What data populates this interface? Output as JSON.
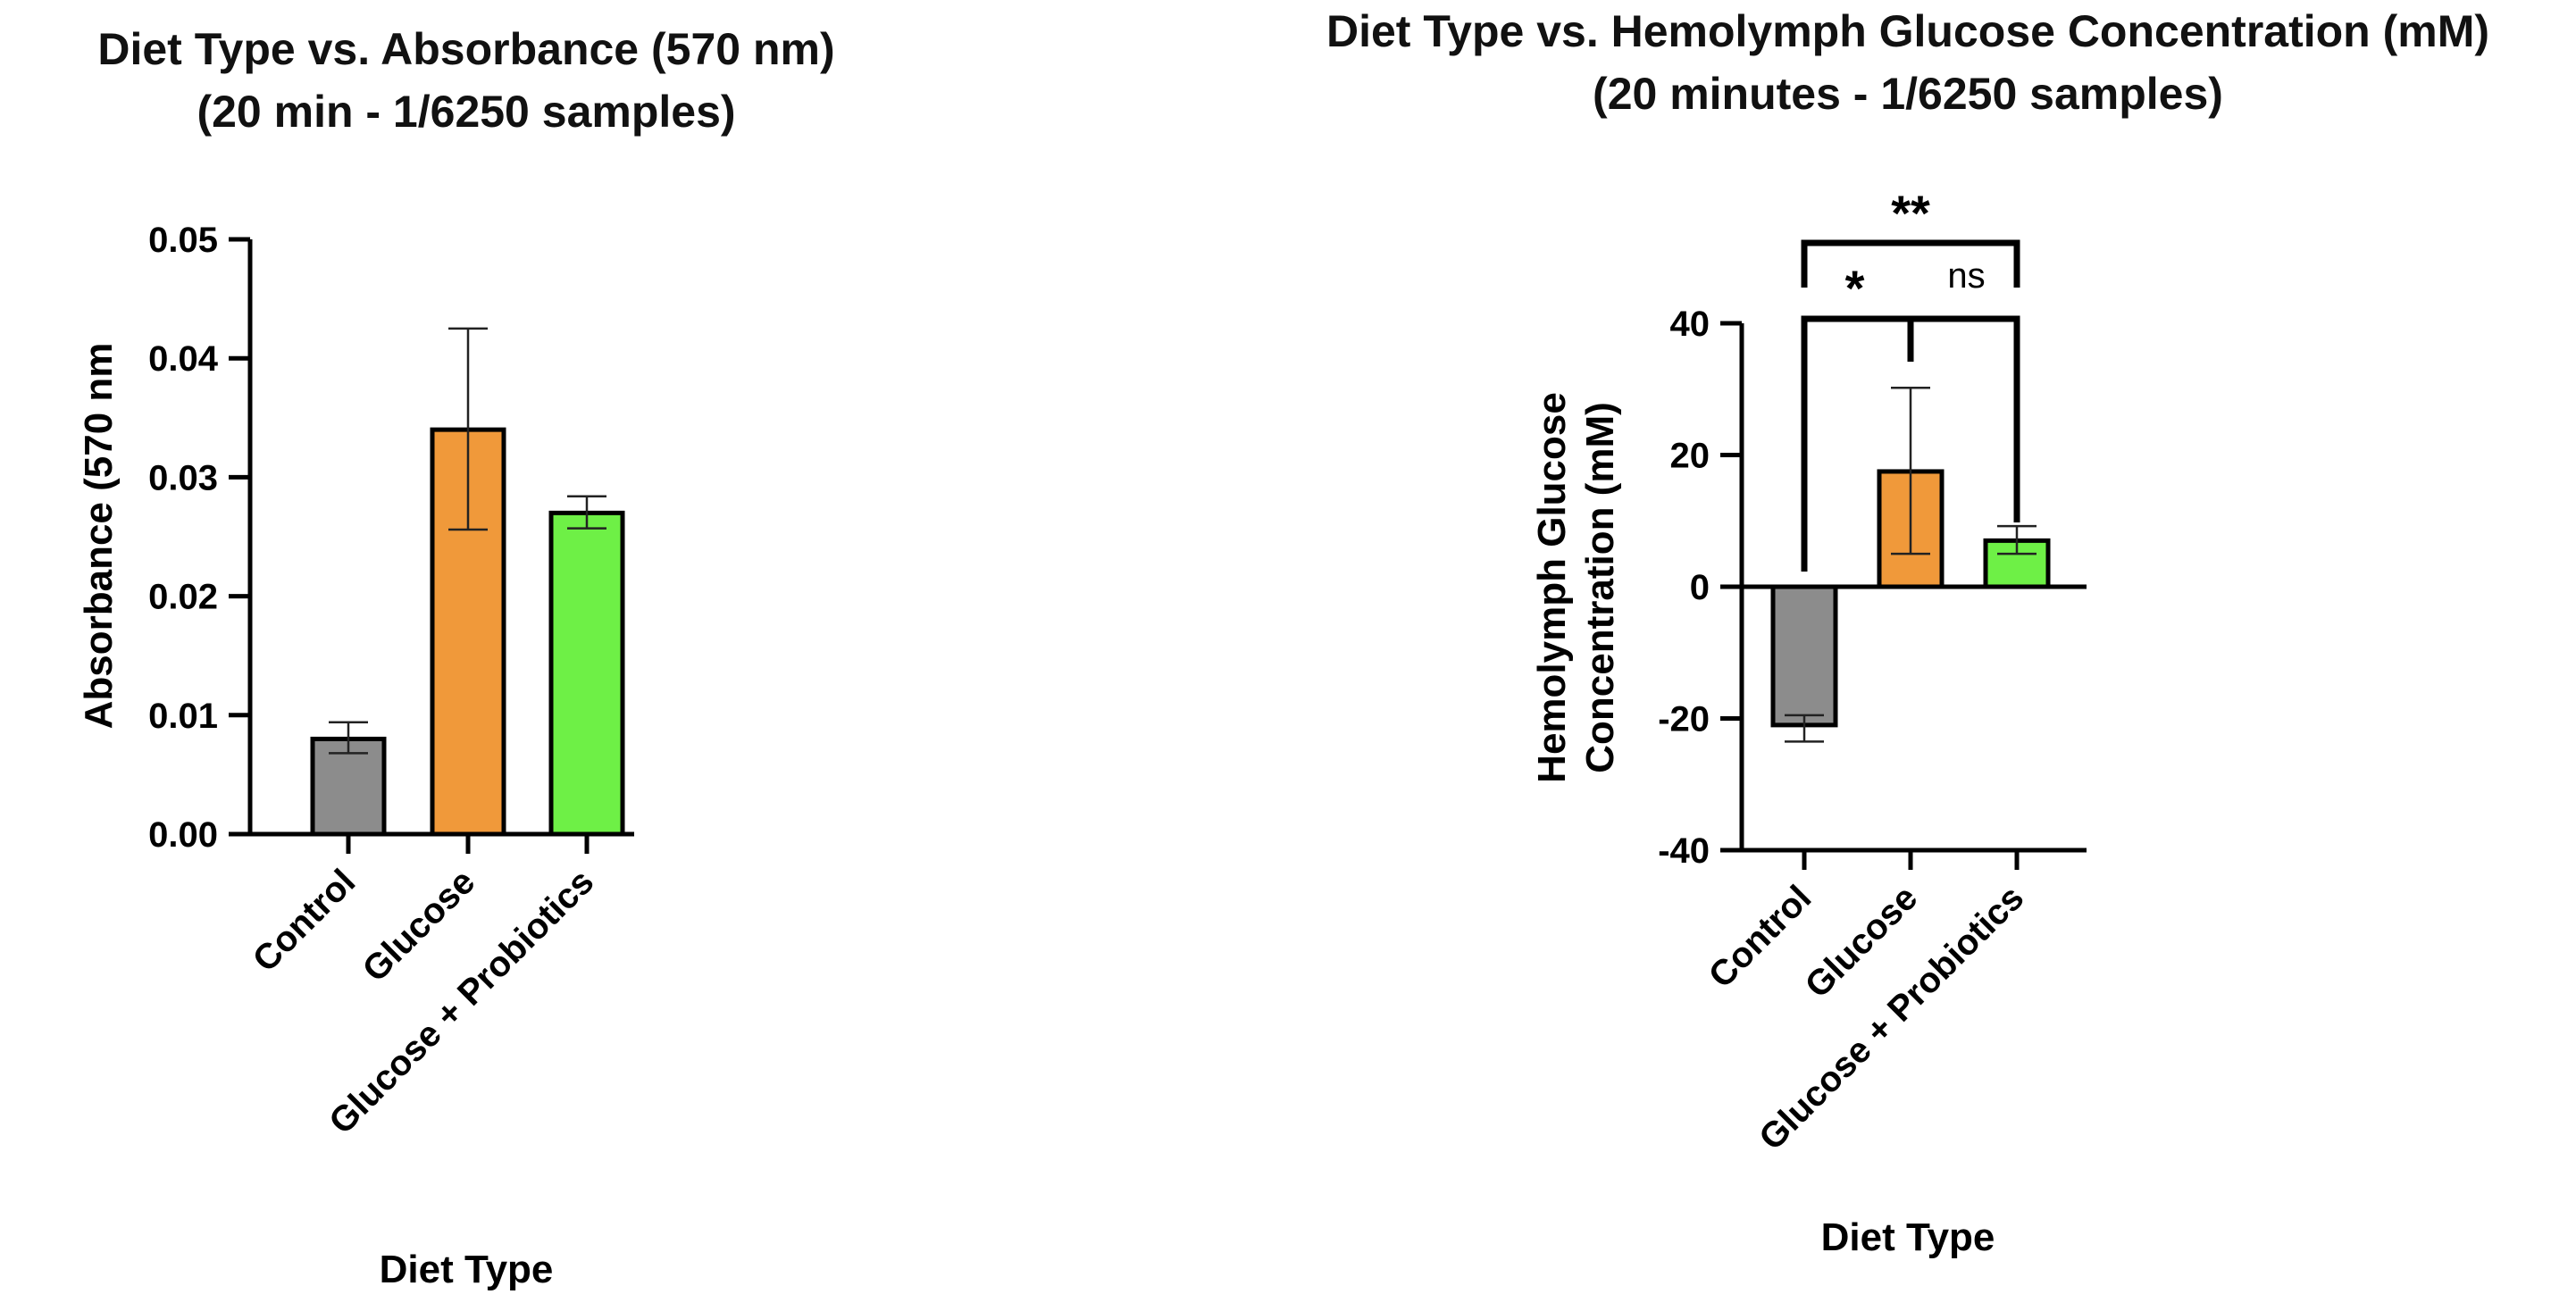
{
  "chart_data": [
    {
      "type": "bar",
      "title": "Diet Type vs. Absorbance (570 nm)",
      "subtitle": "(20 min - 1/6250 samples)",
      "xlabel": "Diet Type",
      "ylabel": "Absorbance (570 nm",
      "categories": [
        "Control",
        "Glucose",
        "Glucose + Probiotics"
      ],
      "values": [
        0.008,
        0.034,
        0.027
      ],
      "error_low": [
        0.0068,
        0.0256,
        0.0257
      ],
      "error_high": [
        0.0094,
        0.0425,
        0.0284
      ],
      "colors": [
        "#8c8c8c",
        "#f0993a",
        "#6ef046"
      ],
      "ylim": [
        0,
        0.05
      ],
      "yticks": [
        0.0,
        0.01,
        0.02,
        0.03,
        0.04,
        0.05
      ],
      "ytick_labels": [
        "0.00",
        "0.01",
        "0.02",
        "0.03",
        "0.04",
        "0.05"
      ]
    },
    {
      "type": "bar",
      "title": "Diet Type vs. Hemolymph Glucose Concentration (mM)",
      "subtitle": "(20 minutes - 1/6250 samples)",
      "xlabel": "Diet Type",
      "ylabel_line1": "Hemolymph Glucose",
      "ylabel_line2": "Concentration (mM)",
      "categories": [
        "Control",
        "Glucose",
        "Glucose + Probiotics"
      ],
      "values": [
        -21,
        17.5,
        7
      ],
      "error_low": [
        -23.5,
        5,
        5
      ],
      "error_high": [
        -19.5,
        30.2,
        9.2
      ],
      "colors": [
        "#8c8c8c",
        "#f0993a",
        "#6ef046"
      ],
      "ylim": [
        -40,
        40
      ],
      "yticks": [
        -40,
        -20,
        0,
        20,
        40
      ],
      "ytick_labels": [
        "-40",
        "-20",
        "0",
        "20",
        "40"
      ],
      "significance": [
        {
          "from": "Control",
          "to": "Glucose + Probiotics",
          "label": "**"
        },
        {
          "from": "Control",
          "to": "Glucose",
          "label": "*"
        },
        {
          "from": "Glucose",
          "to": "Glucose + Probiotics",
          "label": "ns"
        }
      ]
    }
  ]
}
